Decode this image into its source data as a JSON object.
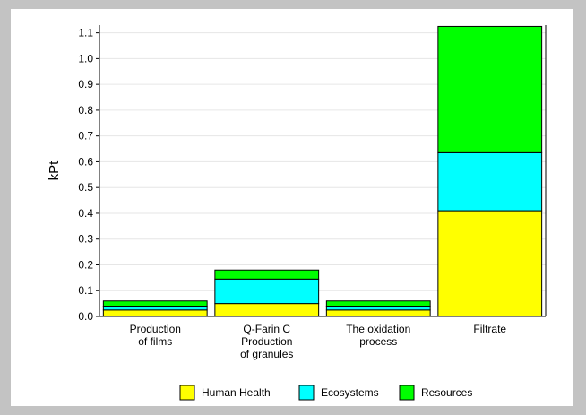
{
  "chart_data": {
    "type": "bar",
    "stacked": true,
    "title": "",
    "xlabel": "",
    "ylabel": "kPt",
    "ylim": [
      0,
      1.13
    ],
    "yticks": [
      0.0,
      0.1,
      0.2,
      0.3,
      0.4,
      0.5,
      0.6,
      0.7,
      0.8,
      0.9,
      1.0,
      1.1
    ],
    "ytick_labels": [
      "0.0",
      "0.1",
      "0.2",
      "0.3",
      "0.4",
      "0.5",
      "0.6",
      "0.7",
      "0.8",
      "0.9",
      "1.0",
      "1.1"
    ],
    "grid": true,
    "legend_position": "bottom",
    "categories": [
      [
        "Production",
        "of films"
      ],
      [
        "Q-Farin C",
        "Production",
        "of granules"
      ],
      [
        "The oxidation",
        "process"
      ],
      [
        "Filtrate"
      ]
    ],
    "series": [
      {
        "name": "Human Health",
        "color": "#ffff00",
        "values": [
          0.025,
          0.05,
          0.025,
          0.41
        ]
      },
      {
        "name": "Ecosystems",
        "color": "#00ffff",
        "values": [
          0.015,
          0.095,
          0.015,
          0.225
        ]
      },
      {
        "name": "Resources",
        "color": "#00ff00",
        "values": [
          0.02,
          0.035,
          0.02,
          0.49
        ]
      }
    ]
  }
}
